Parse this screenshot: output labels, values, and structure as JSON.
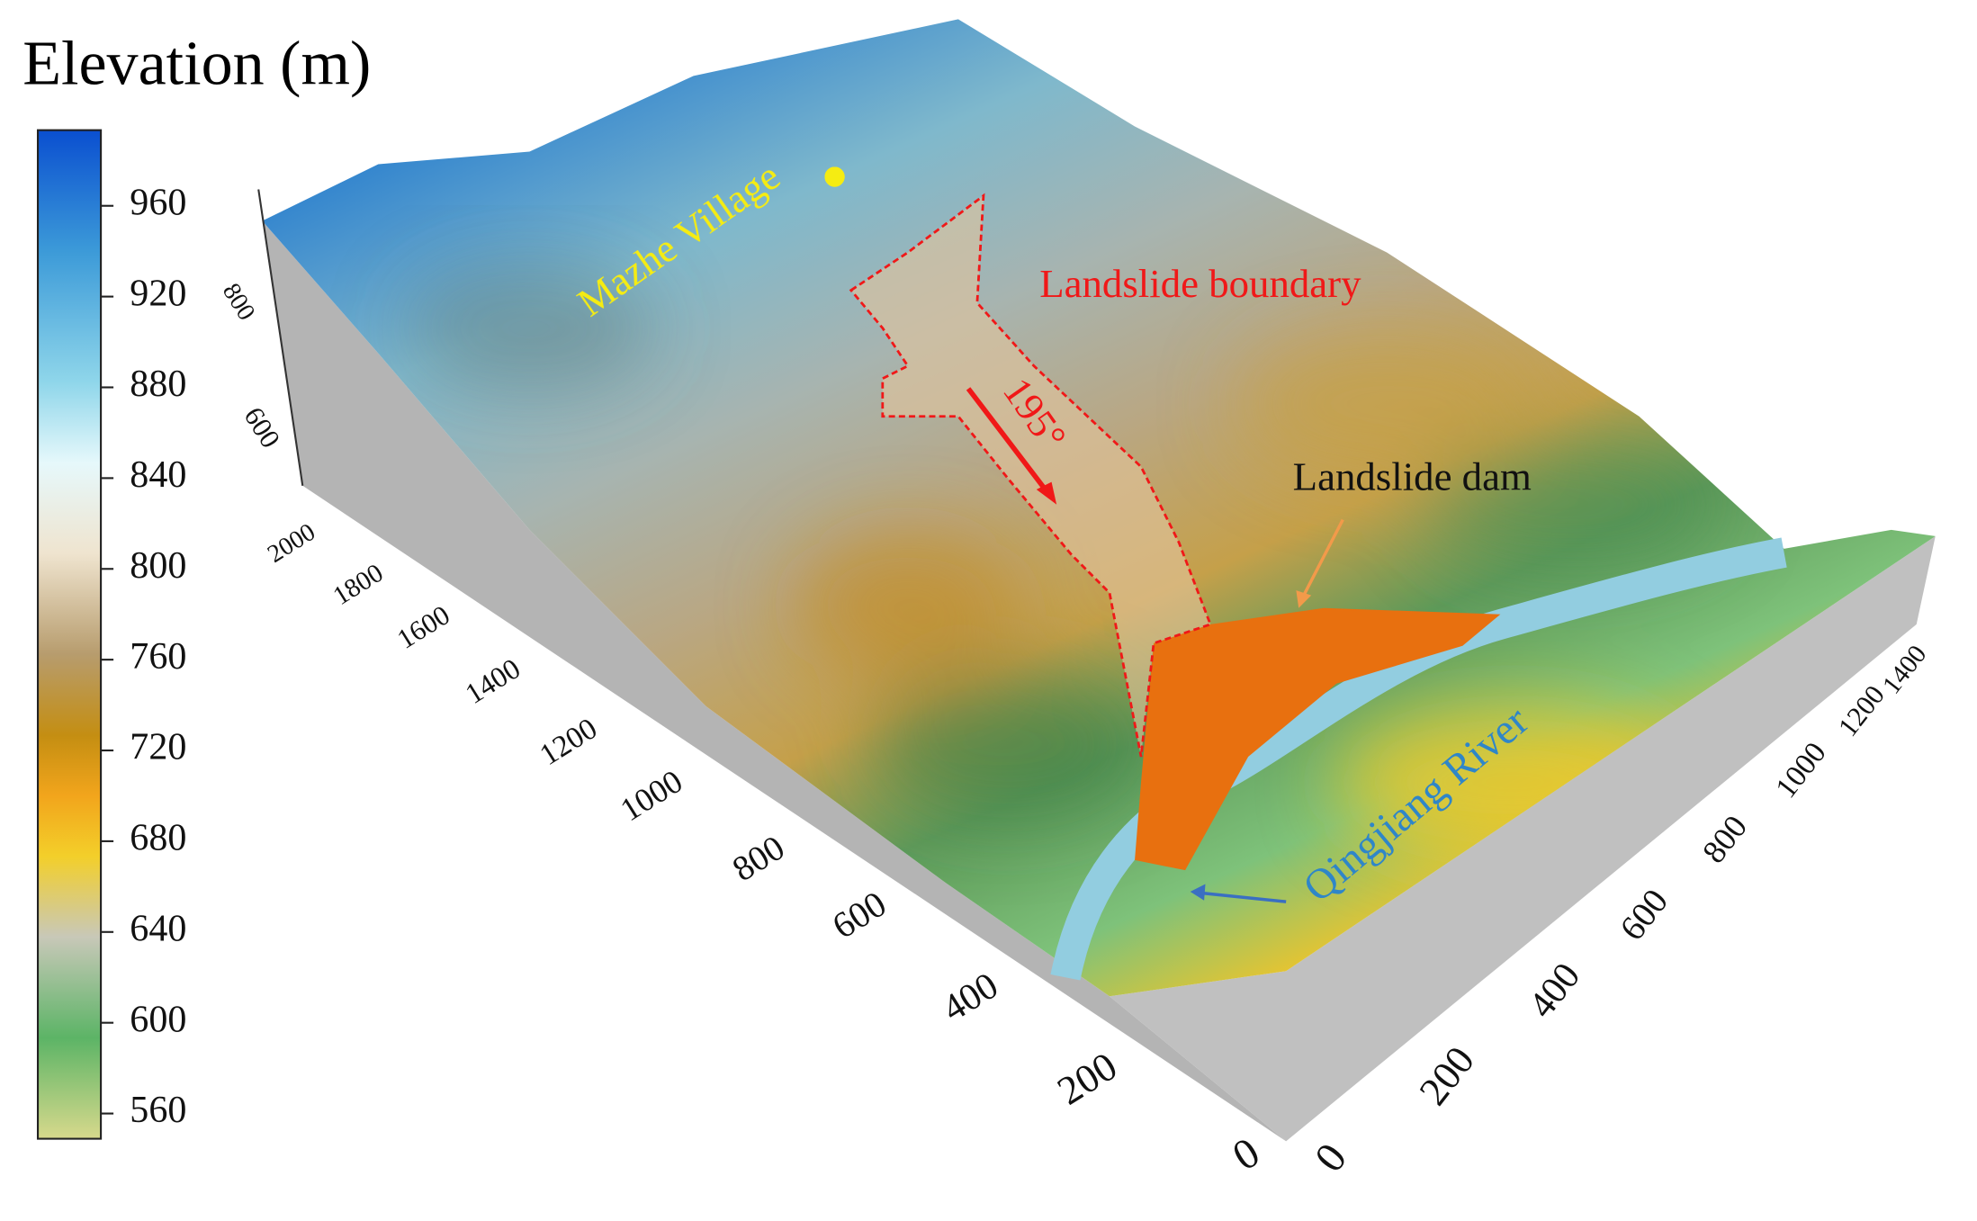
{
  "legend": {
    "title": "Elevation (m)",
    "ticks": [
      960,
      920,
      880,
      840,
      800,
      760,
      720,
      680,
      640,
      600,
      560
    ]
  },
  "axes": {
    "y_ticks": [
      2000,
      1800,
      1600,
      1400,
      1200,
      1000,
      800,
      600,
      400,
      200,
      0
    ],
    "x_ticks": [
      0,
      200,
      400,
      600,
      800,
      1000,
      1200,
      1400
    ],
    "z_ticks": [
      800,
      600
    ]
  },
  "annotations": {
    "village": "Mazhe Village",
    "boundary": "Landslide boundary",
    "direction": "195°",
    "dam": "Landslide dam",
    "river": "Qingjiang River"
  }
}
